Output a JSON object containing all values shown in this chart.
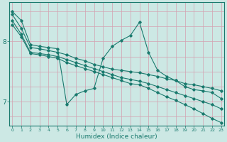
{
  "xlabel": "Humidex (Indice chaleur)",
  "bg_color": "#cce8e4",
  "line_color": "#1a7a6e",
  "grid_color": "#d4a0b0",
  "xlim": [
    -0.3,
    23.3
  ],
  "ylim": [
    6.6,
    8.65
  ],
  "yticks": [
    7.0,
    8.0
  ],
  "xticks": [
    0,
    1,
    2,
    3,
    4,
    5,
    6,
    7,
    8,
    9,
    10,
    11,
    12,
    13,
    14,
    15,
    16,
    17,
    18,
    19,
    20,
    21,
    22,
    23
  ],
  "series": [
    {
      "x": [
        0,
        1,
        2,
        3,
        4,
        5,
        6,
        7,
        8,
        9,
        10,
        11,
        12,
        13,
        14,
        15,
        16,
        17,
        18,
        19,
        20,
        21,
        22,
        23
      ],
      "y": [
        8.5,
        8.35,
        7.95,
        7.92,
        7.9,
        7.88,
        6.95,
        7.12,
        7.18,
        7.22,
        7.72,
        7.92,
        8.02,
        8.1,
        8.32,
        7.82,
        7.52,
        7.42,
        7.35,
        7.25,
        7.2,
        7.18,
        7.15,
        7.05
      ]
    },
    {
      "x": [
        0,
        1,
        2,
        3,
        4,
        5,
        6,
        7,
        8,
        9,
        10,
        11,
        12,
        13,
        14,
        15,
        16,
        17,
        18,
        19,
        20,
        21,
        22,
        23
      ],
      "y": [
        8.45,
        8.22,
        7.9,
        7.88,
        7.85,
        7.82,
        7.78,
        7.72,
        7.68,
        7.62,
        7.58,
        7.54,
        7.52,
        7.5,
        7.48,
        7.45,
        7.42,
        7.38,
        7.35,
        7.3,
        7.28,
        7.25,
        7.22,
        7.18
      ]
    },
    {
      "x": [
        0,
        1,
        2,
        3,
        4,
        5,
        6,
        7,
        8,
        9,
        10,
        11,
        12,
        13,
        14,
        15,
        16,
        17,
        18,
        19,
        20,
        21,
        22,
        23
      ],
      "y": [
        8.35,
        8.12,
        7.82,
        7.8,
        7.78,
        7.75,
        7.7,
        7.65,
        7.6,
        7.55,
        7.5,
        7.45,
        7.4,
        7.37,
        7.34,
        7.3,
        7.25,
        7.2,
        7.15,
        7.1,
        7.05,
        7.0,
        6.95,
        6.88
      ]
    },
    {
      "x": [
        0,
        1,
        2,
        3,
        4,
        5,
        6,
        7,
        8,
        9,
        10,
        11,
        12,
        13,
        14,
        15,
        16,
        17,
        18,
        19,
        20,
        21,
        22,
        23
      ],
      "y": [
        8.28,
        8.08,
        7.8,
        7.78,
        7.75,
        7.72,
        7.65,
        7.6,
        7.55,
        7.5,
        7.45,
        7.4,
        7.35,
        7.3,
        7.28,
        7.22,
        7.15,
        7.08,
        7.02,
        6.95,
        6.88,
        6.8,
        6.72,
        6.65
      ]
    }
  ]
}
